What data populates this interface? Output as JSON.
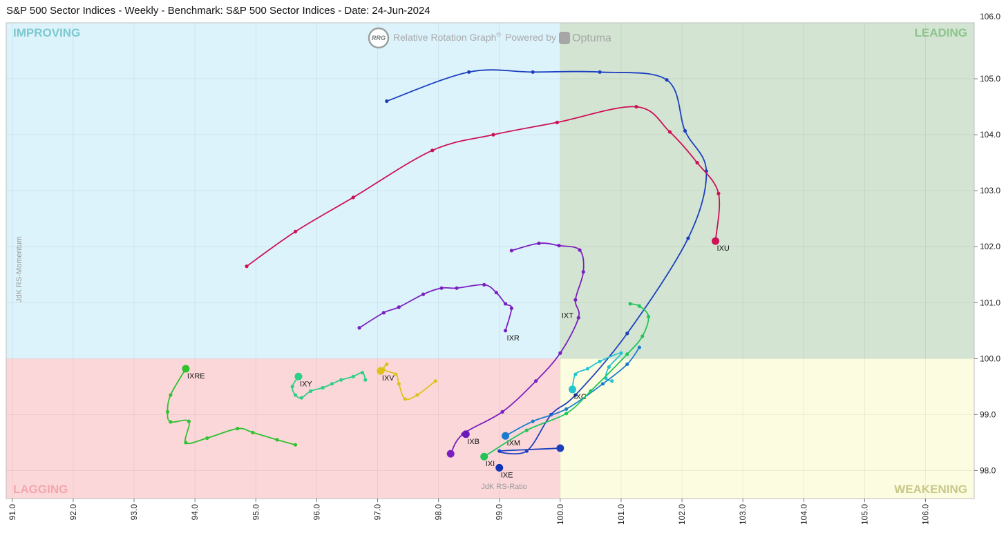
{
  "chart_data": {
    "type": "scatter",
    "subtype": "relative-rotation-graph",
    "title": "S&P 500 Sector Indices - Weekly - Benchmark: S&P 500 Sector Indices - Date: 24-Jun-2024",
    "xlabel": "JdK RS-Ratio",
    "ylabel": "JdK RS-Momentum",
    "xlim": [
      90.9,
      106.8
    ],
    "ylim": [
      97.5,
      106.0
    ],
    "center": [
      100.0,
      100.0
    ],
    "xticks": [
      "91.0",
      "92.0",
      "93.0",
      "94.0",
      "95.0",
      "96.0",
      "97.0",
      "98.0",
      "99.0",
      "100.0",
      "101.0",
      "102.0",
      "103.0",
      "104.0",
      "105.0",
      "106.0"
    ],
    "yticks": [
      "98.0",
      "99.0",
      "100.0",
      "101.0",
      "102.0",
      "103.0",
      "104.0",
      "105.0"
    ],
    "top_partial_tick": "106.0",
    "grid": true,
    "quadrants": [
      {
        "name": "IMPROVING",
        "color": "#dcf3fb",
        "label_color": "#7cc9cf",
        "position": "top-left"
      },
      {
        "name": "LEADING",
        "color": "#d3e4d3",
        "label_color": "#8cc58c",
        "position": "top-right"
      },
      {
        "name": "LAGGING",
        "color": "#fbd7d9",
        "label_color": "#f3a6ab",
        "position": "bottom-left"
      },
      {
        "name": "WEAKENING",
        "color": "#fcfce0",
        "label_color": "#c8c88a",
        "position": "bottom-right"
      }
    ],
    "brand": {
      "rrg_text": "Relative Rotation Graph",
      "registered": "®",
      "powered": "Powered by",
      "vendor": "Optuma",
      "badge": "RRG"
    },
    "series": [
      {
        "name": "IXT",
        "color": "#1c3fc0",
        "points": [
          [
            97.15,
            104.6
          ],
          [
            98.5,
            105.12
          ],
          [
            99.55,
            105.12
          ],
          [
            100.65,
            105.12
          ],
          [
            101.75,
            104.98
          ],
          [
            102.05,
            104.07
          ],
          [
            102.4,
            103.35
          ],
          [
            102.1,
            102.15
          ],
          [
            101.1,
            100.45
          ],
          [
            100.25,
            99.35
          ],
          [
            99.85,
            99.0
          ],
          [
            99.45,
            98.35
          ],
          [
            99.0,
            98.35
          ],
          [
            100.0,
            98.4
          ]
        ],
        "label_pos": [
          100.0,
          100.9
        ]
      },
      {
        "name": "IXU",
        "color": "#cc1155",
        "points": [
          [
            94.85,
            101.65
          ],
          [
            95.65,
            102.27
          ],
          [
            96.6,
            102.88
          ],
          [
            97.9,
            103.72
          ],
          [
            98.9,
            104.0
          ],
          [
            99.95,
            104.22
          ],
          [
            101.25,
            104.5
          ],
          [
            101.8,
            104.05
          ],
          [
            102.25,
            103.5
          ],
          [
            102.6,
            102.95
          ],
          [
            102.55,
            102.1
          ]
        ],
        "label_pos": [
          102.55,
          102.1
        ]
      },
      {
        "name": "IXR",
        "color": "#7a1fc0",
        "points": [
          [
            99.2,
            101.93
          ],
          [
            99.65,
            102.06
          ],
          [
            99.98,
            102.02
          ],
          [
            100.32,
            101.94
          ],
          [
            100.38,
            101.55
          ],
          [
            100.25,
            101.05
          ],
          [
            100.3,
            100.73
          ],
          [
            100.0,
            100.1
          ],
          [
            99.6,
            99.6
          ],
          [
            99.05,
            99.05
          ],
          [
            98.4,
            98.65
          ],
          [
            98.2,
            98.3
          ]
        ],
        "points2": [
          [
            96.7,
            100.55
          ],
          [
            97.1,
            100.82
          ],
          [
            97.35,
            100.92
          ],
          [
            97.75,
            101.15
          ],
          [
            98.05,
            101.26
          ],
          [
            98.3,
            101.26
          ],
          [
            98.75,
            101.32
          ],
          [
            98.95,
            101.18
          ],
          [
            99.1,
            100.98
          ],
          [
            99.2,
            100.9
          ],
          [
            99.1,
            100.5
          ]
        ],
        "label_pos": [
          99.1,
          100.5
        ]
      },
      {
        "name": "IXB",
        "color": "#6a1ab8",
        "points": [
          [
            98.45,
            98.65
          ]
        ],
        "label_pos": [
          98.45,
          98.65
        ]
      },
      {
        "name": "IXC",
        "color": "#22c4d0",
        "points": [
          [
            100.85,
            99.6
          ],
          [
            100.75,
            99.65
          ],
          [
            100.8,
            99.85
          ],
          [
            101.0,
            100.1
          ],
          [
            100.65,
            99.95
          ],
          [
            100.45,
            99.82
          ],
          [
            100.25,
            99.72
          ],
          [
            100.2,
            99.45
          ]
        ],
        "label_pos": [
          100.2,
          99.45
        ]
      },
      {
        "name": "IXM",
        "color": "#1a7bd0",
        "points": [
          [
            101.3,
            100.2
          ],
          [
            101.1,
            99.9
          ],
          [
            100.7,
            99.55
          ],
          [
            100.1,
            99.1
          ],
          [
            99.55,
            98.88
          ],
          [
            99.1,
            98.62
          ]
        ],
        "label_pos": [
          99.1,
          98.62
        ]
      },
      {
        "name": "IXI",
        "color": "#22c45a",
        "points": [
          [
            101.15,
            100.98
          ],
          [
            101.3,
            100.94
          ],
          [
            101.45,
            100.75
          ],
          [
            101.35,
            100.4
          ],
          [
            101.1,
            100.08
          ],
          [
            100.5,
            99.42
          ],
          [
            100.1,
            99.02
          ],
          [
            99.45,
            98.72
          ],
          [
            98.75,
            98.25
          ]
        ],
        "label_pos": [
          98.75,
          98.25
        ]
      },
      {
        "name": "IXE",
        "color": "#1034b5",
        "points": [
          [
            99.0,
            98.05
          ]
        ],
        "label_pos": [
          99.0,
          98.05
        ]
      },
      {
        "name": "IXRE",
        "color": "#2ec22e",
        "points": [
          [
            95.65,
            98.46
          ],
          [
            95.35,
            98.55
          ],
          [
            94.95,
            98.68
          ],
          [
            94.7,
            98.75
          ],
          [
            94.2,
            98.58
          ],
          [
            93.85,
            98.5
          ],
          [
            93.9,
            98.88
          ],
          [
            93.6,
            98.87
          ],
          [
            93.55,
            99.05
          ],
          [
            93.6,
            99.35
          ],
          [
            93.85,
            99.82
          ]
        ],
        "label_pos": [
          93.85,
          99.82
        ]
      },
      {
        "name": "IXY",
        "color": "#2ecf86",
        "points": [
          [
            96.8,
            99.62
          ],
          [
            96.75,
            99.75
          ],
          [
            96.6,
            99.68
          ],
          [
            96.4,
            99.62
          ],
          [
            96.25,
            99.55
          ],
          [
            96.1,
            99.48
          ],
          [
            95.9,
            99.42
          ],
          [
            95.75,
            99.3
          ],
          [
            95.65,
            99.35
          ],
          [
            95.6,
            99.5
          ],
          [
            95.7,
            99.68
          ]
        ],
        "label_pos": [
          95.7,
          99.68
        ]
      },
      {
        "name": "IXV",
        "color": "#dcc21a",
        "points": [
          [
            97.95,
            99.6
          ],
          [
            97.65,
            99.35
          ],
          [
            97.45,
            99.28
          ],
          [
            97.35,
            99.55
          ],
          [
            97.3,
            99.72
          ],
          [
            97.1,
            99.8
          ],
          [
            97.15,
            99.9
          ],
          [
            97.05,
            99.78
          ]
        ],
        "label_pos": [
          97.05,
          99.78
        ]
      }
    ]
  }
}
